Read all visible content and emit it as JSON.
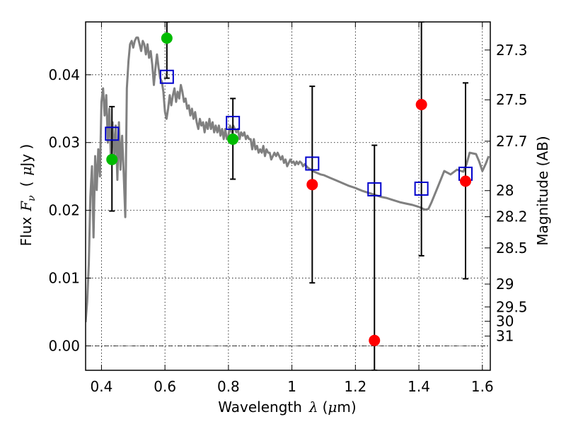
{
  "chart_data": {
    "type": "scatter",
    "xlabel": "Wavelength",
    "xlabel_symbol": "λ",
    "xlabel_unit_open": "(",
    "xlabel_unit_mu": "μ",
    "xlabel_unit_rest": "m)",
    "ylabel": "Flux",
    "ylabel_symbol": "F",
    "ylabel_subscript": "ν",
    "ylabel_unit_open": "(",
    "ylabel_unit_mu": "μ",
    "ylabel_unit_rest": "Jy )",
    "y2label": "Magnitude (AB)",
    "xlim": [
      0.35,
      1.625
    ],
    "ylim": [
      -0.0036,
      0.0478
    ],
    "grid": true,
    "x_ticks": [
      {
        "value": 0.4,
        "label": "0.4"
      },
      {
        "value": 0.6,
        "label": "0.6"
      },
      {
        "value": 0.8,
        "label": "0.8"
      },
      {
        "value": 1.0,
        "label": "1"
      },
      {
        "value": 1.2,
        "label": "1.2"
      },
      {
        "value": 1.4,
        "label": "1.4"
      },
      {
        "value": 1.6,
        "label": "1.6"
      }
    ],
    "y_ticks": [
      {
        "value": 0.0,
        "label": "0.00"
      },
      {
        "value": 0.01,
        "label": "0.01"
      },
      {
        "value": 0.02,
        "label": "0.02"
      },
      {
        "value": 0.03,
        "label": "0.03"
      },
      {
        "value": 0.04,
        "label": "0.04"
      }
    ],
    "mag_ticks": [
      {
        "value": 27.3,
        "label": "27.3"
      },
      {
        "value": 27.5,
        "label": "27.5"
      },
      {
        "value": 27.7,
        "label": "27.7"
      },
      {
        "value": 28.0,
        "label": "28"
      },
      {
        "value": 28.2,
        "label": "28.2"
      },
      {
        "value": 28.5,
        "label": "28.5"
      },
      {
        "value": 29.0,
        "label": "29"
      },
      {
        "value": 29.5,
        "label": "29.5"
      },
      {
        "value": 30.0,
        "label": "30"
      },
      {
        "value": 31.0,
        "label": "31"
      }
    ],
    "series": [
      {
        "name": "model",
        "kind": "line",
        "color": "#808080",
        "points": [
          [
            0.35,
            0.0035
          ],
          [
            0.355,
            0.0065
          ],
          [
            0.36,
            0.012
          ],
          [
            0.365,
            0.022
          ],
          [
            0.37,
            0.0265
          ],
          [
            0.375,
            0.016
          ],
          [
            0.38,
            0.028
          ],
          [
            0.385,
            0.023
          ],
          [
            0.39,
            0.029
          ],
          [
            0.395,
            0.025
          ],
          [
            0.4,
            0.036
          ],
          [
            0.405,
            0.038
          ],
          [
            0.41,
            0.034
          ],
          [
            0.415,
            0.037
          ],
          [
            0.42,
            0.03
          ],
          [
            0.425,
            0.035
          ],
          [
            0.43,
            0.027
          ],
          [
            0.435,
            0.033
          ],
          [
            0.44,
            0.028
          ],
          [
            0.445,
            0.0325
          ],
          [
            0.45,
            0.0245
          ],
          [
            0.455,
            0.033
          ],
          [
            0.46,
            0.026
          ],
          [
            0.465,
            0.031
          ],
          [
            0.47,
            0.0255
          ],
          [
            0.475,
            0.019
          ],
          [
            0.48,
            0.038
          ],
          [
            0.485,
            0.042
          ],
          [
            0.49,
            0.0445
          ],
          [
            0.495,
            0.045
          ],
          [
            0.5,
            0.044
          ],
          [
            0.505,
            0.045
          ],
          [
            0.51,
            0.0455
          ],
          [
            0.515,
            0.0455
          ],
          [
            0.52,
            0.0445
          ],
          [
            0.525,
            0.0435
          ],
          [
            0.53,
            0.045
          ],
          [
            0.535,
            0.0445
          ],
          [
            0.54,
            0.043
          ],
          [
            0.545,
            0.0445
          ],
          [
            0.55,
            0.0425
          ],
          [
            0.555,
            0.0435
          ],
          [
            0.56,
            0.0415
          ],
          [
            0.565,
            0.0385
          ],
          [
            0.57,
            0.041
          ],
          [
            0.575,
            0.043
          ],
          [
            0.58,
            0.041
          ],
          [
            0.585,
            0.0395
          ],
          [
            0.59,
            0.039
          ],
          [
            0.595,
            0.0375
          ],
          [
            0.6,
            0.0345
          ],
          [
            0.605,
            0.0335
          ],
          [
            0.61,
            0.035
          ],
          [
            0.615,
            0.037
          ],
          [
            0.62,
            0.0355
          ],
          [
            0.625,
            0.037
          ],
          [
            0.63,
            0.038
          ],
          [
            0.635,
            0.036
          ],
          [
            0.64,
            0.0375
          ],
          [
            0.645,
            0.0365
          ],
          [
            0.65,
            0.0385
          ],
          [
            0.655,
            0.0375
          ],
          [
            0.66,
            0.036
          ],
          [
            0.665,
            0.0365
          ],
          [
            0.67,
            0.035
          ],
          [
            0.675,
            0.0355
          ],
          [
            0.68,
            0.034
          ],
          [
            0.685,
            0.035
          ],
          [
            0.69,
            0.0335
          ],
          [
            0.695,
            0.0345
          ],
          [
            0.7,
            0.033
          ],
          [
            0.705,
            0.032
          ],
          [
            0.71,
            0.0335
          ],
          [
            0.715,
            0.0325
          ],
          [
            0.72,
            0.033
          ],
          [
            0.725,
            0.0315
          ],
          [
            0.73,
            0.033
          ],
          [
            0.735,
            0.032
          ],
          [
            0.74,
            0.0335
          ],
          [
            0.745,
            0.032
          ],
          [
            0.75,
            0.033
          ],
          [
            0.755,
            0.0315
          ],
          [
            0.76,
            0.0325
          ],
          [
            0.765,
            0.0315
          ],
          [
            0.77,
            0.0325
          ],
          [
            0.775,
            0.031
          ],
          [
            0.78,
            0.032
          ],
          [
            0.785,
            0.0305
          ],
          [
            0.79,
            0.032
          ],
          [
            0.795,
            0.0305
          ],
          [
            0.8,
            0.031
          ],
          [
            0.805,
            0.0325
          ],
          [
            0.81,
            0.0315
          ],
          [
            0.815,
            0.0325
          ],
          [
            0.82,
            0.032
          ],
          [
            0.825,
            0.0315
          ],
          [
            0.83,
            0.032
          ],
          [
            0.835,
            0.0305
          ],
          [
            0.84,
            0.0315
          ],
          [
            0.845,
            0.031
          ],
          [
            0.85,
            0.0315
          ],
          [
            0.855,
            0.0305
          ],
          [
            0.86,
            0.031
          ],
          [
            0.865,
            0.0305
          ],
          [
            0.87,
            0.0305
          ],
          [
            0.875,
            0.029
          ],
          [
            0.88,
            0.0305
          ],
          [
            0.885,
            0.029
          ],
          [
            0.89,
            0.0295
          ],
          [
            0.895,
            0.0285
          ],
          [
            0.9,
            0.029
          ],
          [
            0.905,
            0.0285
          ],
          [
            0.91,
            0.0295
          ],
          [
            0.915,
            0.028
          ],
          [
            0.92,
            0.029
          ],
          [
            0.925,
            0.0285
          ],
          [
            0.93,
            0.0285
          ],
          [
            0.935,
            0.0275
          ],
          [
            0.94,
            0.028
          ],
          [
            0.945,
            0.0285
          ],
          [
            0.95,
            0.028
          ],
          [
            0.955,
            0.0285
          ],
          [
            0.96,
            0.028
          ],
          [
            0.965,
            0.0275
          ],
          [
            0.97,
            0.028
          ],
          [
            0.975,
            0.027
          ],
          [
            0.98,
            0.0275
          ],
          [
            0.985,
            0.0265
          ],
          [
            0.99,
            0.027
          ],
          [
            0.995,
            0.0275
          ],
          [
            1.0,
            0.027
          ],
          [
            1.005,
            0.0272
          ],
          [
            1.01,
            0.0267
          ],
          [
            1.015,
            0.0272
          ],
          [
            1.02,
            0.0268
          ],
          [
            1.025,
            0.0272
          ],
          [
            1.03,
            0.027
          ],
          [
            1.035,
            0.0265
          ],
          [
            1.04,
            0.0268
          ],
          [
            1.05,
            0.0263
          ],
          [
            1.06,
            0.026
          ],
          [
            1.07,
            0.0257
          ],
          [
            1.08,
            0.0255
          ],
          [
            1.09,
            0.0253
          ],
          [
            1.1,
            0.0252
          ],
          [
            1.12,
            0.0248
          ],
          [
            1.14,
            0.0244
          ],
          [
            1.16,
            0.024
          ],
          [
            1.18,
            0.0236
          ],
          [
            1.2,
            0.0233
          ],
          [
            1.22,
            0.0229
          ],
          [
            1.24,
            0.0226
          ],
          [
            1.26,
            0.0223
          ],
          [
            1.28,
            0.022
          ],
          [
            1.3,
            0.0218
          ],
          [
            1.32,
            0.0215
          ],
          [
            1.34,
            0.0212
          ],
          [
            1.36,
            0.021
          ],
          [
            1.38,
            0.0208
          ],
          [
            1.4,
            0.0205
          ],
          [
            1.41,
            0.0203
          ],
          [
            1.42,
            0.0201
          ],
          [
            1.43,
            0.0202
          ],
          [
            1.44,
            0.0212
          ],
          [
            1.46,
            0.0235
          ],
          [
            1.48,
            0.0258
          ],
          [
            1.5,
            0.0253
          ],
          [
            1.52,
            0.026
          ],
          [
            1.54,
            0.0257
          ],
          [
            1.55,
            0.0268
          ],
          [
            1.56,
            0.0285
          ],
          [
            1.58,
            0.0283
          ],
          [
            1.59,
            0.0272
          ],
          [
            1.6,
            0.0258
          ],
          [
            1.61,
            0.0268
          ],
          [
            1.62,
            0.028
          ]
        ]
      },
      {
        "name": "errorbars",
        "kind": "errorbar",
        "color": "#000000",
        "bars": [
          [
            0.433,
            0.0199,
            0.0353
          ],
          [
            0.606,
            0.0395,
            0.0478
          ],
          [
            0.814,
            0.0246,
            0.0365
          ],
          [
            1.064,
            0.0093,
            0.0383
          ],
          [
            1.26,
            -0.0036,
            0.0296
          ],
          [
            1.408,
            0.0133,
            0.0478
          ],
          [
            1.547,
            0.0099,
            0.0388
          ]
        ]
      },
      {
        "name": "model_photometry",
        "kind": "square",
        "color": "#0000cc",
        "points": [
          [
            0.433,
            0.0313
          ],
          [
            0.606,
            0.0397
          ],
          [
            0.814,
            0.0329
          ],
          [
            1.064,
            0.0269
          ],
          [
            1.26,
            0.0231
          ],
          [
            1.408,
            0.0232
          ],
          [
            1.547,
            0.0254
          ]
        ]
      },
      {
        "name": "detections",
        "kind": "circle",
        "color": "#00bb00",
        "points": [
          [
            0.433,
            0.0275
          ],
          [
            0.606,
            0.0454
          ],
          [
            0.814,
            0.0305
          ]
        ]
      },
      {
        "name": "nondetections",
        "kind": "circle",
        "color": "#ff0000",
        "points": [
          [
            1.064,
            0.0238
          ],
          [
            1.26,
            0.0008
          ],
          [
            1.408,
            0.0356
          ],
          [
            1.547,
            0.0243
          ]
        ]
      }
    ]
  }
}
